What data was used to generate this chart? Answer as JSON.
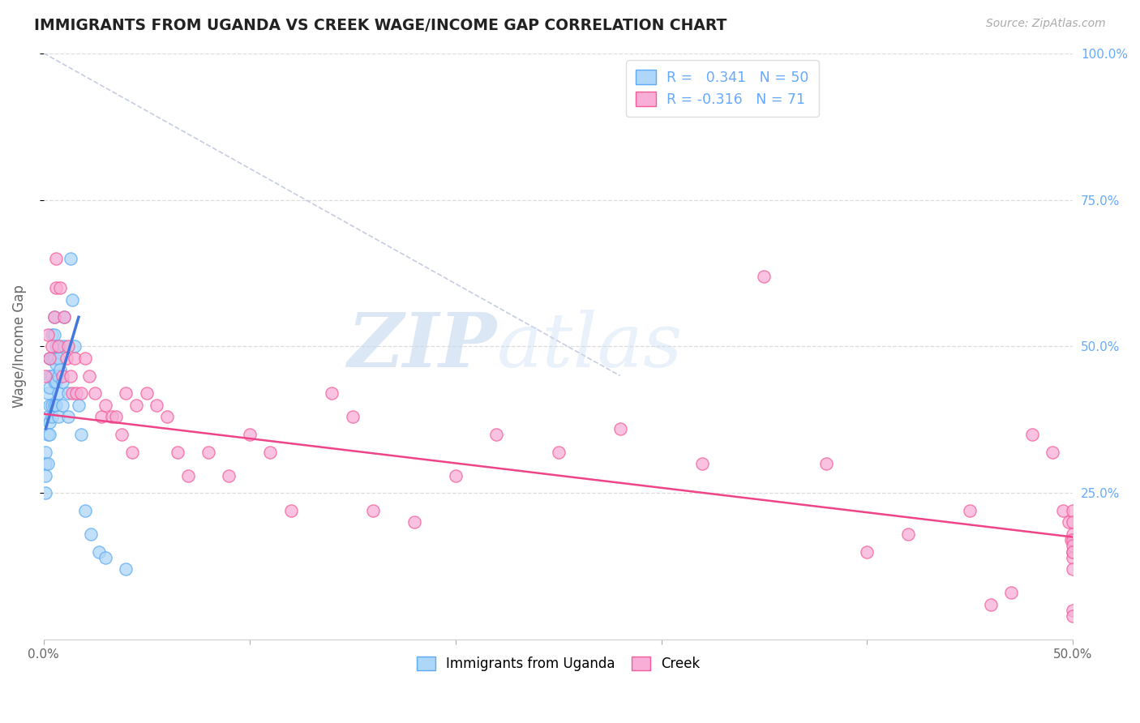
{
  "title": "IMMIGRANTS FROM UGANDA VS CREEK WAGE/INCOME GAP CORRELATION CHART",
  "source": "Source: ZipAtlas.com",
  "ylabel": "Wage/Income Gap",
  "xlim": [
    0.0,
    0.5
  ],
  "ylim": [
    0.0,
    1.0
  ],
  "xtick_vals": [
    0.0,
    0.1,
    0.2,
    0.3,
    0.4,
    0.5
  ],
  "xtick_labels": [
    "0.0%",
    "",
    "",
    "",
    "",
    "50.0%"
  ],
  "ytick_vals": [
    0.25,
    0.5,
    0.75,
    1.0
  ],
  "right_ytick_labels": [
    "25.0%",
    "50.0%",
    "75.0%",
    "100.0%"
  ],
  "color_uganda": "#aed6f8",
  "color_creek": "#f8aed6",
  "color_uganda_edge": "#5baaf5",
  "color_creek_edge": "#f55b99",
  "color_uganda_line": "#4477dd",
  "color_creek_line": "#ee4488",
  "color_trend_dashed": "#c0c8e0",
  "watermark_zip": "ZIP",
  "watermark_atlas": "atlas",
  "background_color": "#ffffff",
  "grid_color": "#dddddd",
  "title_color": "#222222",
  "source_color": "#aaaaaa",
  "right_axis_color": "#66aaff",
  "legend_r1_label": "R = ",
  "legend_r1_val": "0.341",
  "legend_r1_n_label": "N = ",
  "legend_r1_n_val": "50",
  "legend_r2_label": "R = ",
  "legend_r2_val": "-0.316",
  "legend_r2_n_label": "N = ",
  "legend_r2_n_val": "71",
  "uganda_scatter_x": [
    0.001,
    0.001,
    0.001,
    0.001,
    0.002,
    0.002,
    0.002,
    0.002,
    0.003,
    0.003,
    0.003,
    0.003,
    0.003,
    0.003,
    0.004,
    0.004,
    0.004,
    0.004,
    0.004,
    0.005,
    0.005,
    0.005,
    0.005,
    0.005,
    0.006,
    0.006,
    0.006,
    0.006,
    0.007,
    0.007,
    0.007,
    0.007,
    0.008,
    0.008,
    0.009,
    0.009,
    0.01,
    0.01,
    0.012,
    0.012,
    0.013,
    0.014,
    0.015,
    0.017,
    0.018,
    0.02,
    0.023,
    0.027,
    0.03,
    0.04
  ],
  "uganda_scatter_y": [
    0.32,
    0.3,
    0.28,
    0.25,
    0.42,
    0.38,
    0.35,
    0.3,
    0.48,
    0.45,
    0.43,
    0.4,
    0.37,
    0.35,
    0.52,
    0.48,
    0.45,
    0.4,
    0.38,
    0.55,
    0.52,
    0.48,
    0.44,
    0.4,
    0.5,
    0.47,
    0.44,
    0.4,
    0.48,
    0.45,
    0.42,
    0.38,
    0.5,
    0.46,
    0.44,
    0.4,
    0.55,
    0.5,
    0.42,
    0.38,
    0.65,
    0.58,
    0.5,
    0.4,
    0.35,
    0.22,
    0.18,
    0.15,
    0.14,
    0.12
  ],
  "creek_scatter_x": [
    0.001,
    0.002,
    0.003,
    0.004,
    0.005,
    0.006,
    0.006,
    0.007,
    0.008,
    0.009,
    0.01,
    0.011,
    0.012,
    0.013,
    0.014,
    0.015,
    0.016,
    0.018,
    0.02,
    0.022,
    0.025,
    0.028,
    0.03,
    0.033,
    0.035,
    0.038,
    0.04,
    0.043,
    0.045,
    0.05,
    0.055,
    0.06,
    0.065,
    0.07,
    0.08,
    0.09,
    0.1,
    0.11,
    0.12,
    0.14,
    0.15,
    0.16,
    0.18,
    0.2,
    0.22,
    0.25,
    0.28,
    0.32,
    0.35,
    0.38,
    0.4,
    0.42,
    0.45,
    0.46,
    0.47,
    0.48,
    0.49,
    0.495,
    0.498,
    0.499,
    0.5,
    0.5,
    0.5,
    0.5,
    0.5,
    0.5,
    0.5,
    0.5,
    0.5,
    0.5,
    0.5
  ],
  "creek_scatter_y": [
    0.45,
    0.52,
    0.48,
    0.5,
    0.55,
    0.6,
    0.65,
    0.5,
    0.6,
    0.45,
    0.55,
    0.48,
    0.5,
    0.45,
    0.42,
    0.48,
    0.42,
    0.42,
    0.48,
    0.45,
    0.42,
    0.38,
    0.4,
    0.38,
    0.38,
    0.35,
    0.42,
    0.32,
    0.4,
    0.42,
    0.4,
    0.38,
    0.32,
    0.28,
    0.32,
    0.28,
    0.35,
    0.32,
    0.22,
    0.42,
    0.38,
    0.22,
    0.2,
    0.28,
    0.35,
    0.32,
    0.36,
    0.3,
    0.62,
    0.3,
    0.15,
    0.18,
    0.22,
    0.06,
    0.08,
    0.35,
    0.32,
    0.22,
    0.2,
    0.17,
    0.22,
    0.18,
    0.17,
    0.15,
    0.14,
    0.2,
    0.16,
    0.12,
    0.05,
    0.04,
    0.15
  ],
  "uganda_trend_x": [
    0.001,
    0.017
  ],
  "uganda_trend_y": [
    0.36,
    0.55
  ],
  "creek_trend_x": [
    0.0,
    0.5
  ],
  "creek_trend_y": [
    0.385,
    0.175
  ],
  "dashed_trend_x": [
    0.0,
    0.28
  ],
  "dashed_trend_y": [
    1.0,
    0.45
  ]
}
